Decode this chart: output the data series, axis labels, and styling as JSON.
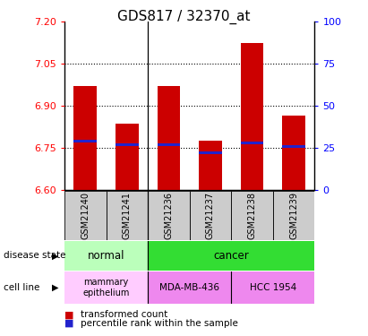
{
  "title": "GDS817 / 32370_at",
  "samples": [
    "GSM21240",
    "GSM21241",
    "GSM21236",
    "GSM21237",
    "GSM21238",
    "GSM21239"
  ],
  "bar_values": [
    6.97,
    6.835,
    6.97,
    6.775,
    7.125,
    6.865
  ],
  "percentile_values": [
    29,
    27,
    27,
    22,
    28,
    26
  ],
  "ylim_left": [
    6.6,
    7.2
  ],
  "ylim_right": [
    0,
    100
  ],
  "yticks_left": [
    6.6,
    6.75,
    6.9,
    7.05,
    7.2
  ],
  "yticks_right": [
    0,
    25,
    50,
    75,
    100
  ],
  "bar_color": "#CC0000",
  "percentile_color": "#2222CC",
  "bar_bottom": 6.6,
  "normal_light_color": "#BBFFBB",
  "normal_dark_color": "#55EE55",
  "cancer_color": "#33DD33",
  "mammary_color": "#FFCCFF",
  "mda_color": "#EE88EE",
  "hcc_color": "#EE88EE",
  "sample_bg_color": "#CCCCCC",
  "bar_width": 0.55,
  "pct_bar_height": 0.009,
  "title_fontsize": 11,
  "tick_fontsize": 8,
  "label_fontsize": 8
}
